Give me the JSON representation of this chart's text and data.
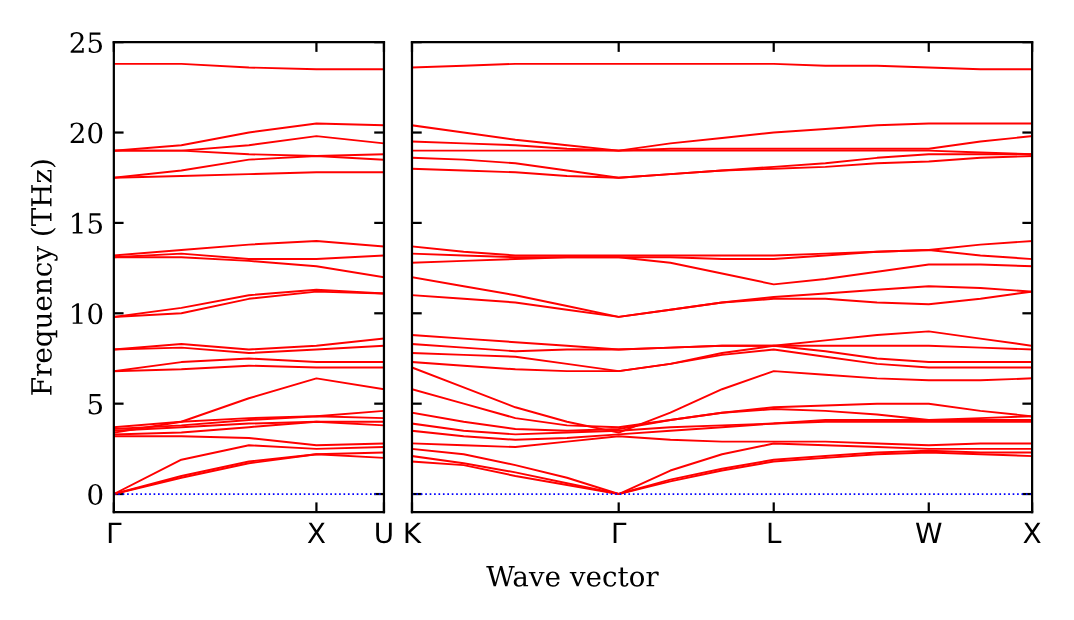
{
  "chart_data": [
    {
      "type": "line",
      "ylabel": "Frequency (THz)",
      "categories": [
        "Γ",
        null,
        null,
        "X",
        "U"
      ],
      "ylim": [
        -1,
        25
      ],
      "yticks": [
        0,
        5,
        10,
        15,
        20,
        25
      ],
      "grid": false,
      "legend": false,
      "marker": "none",
      "line_style": "solid",
      "ref_lines": [
        {
          "axis": "y",
          "value": 0,
          "color": "#0000ff",
          "line_style": "dotted"
        }
      ],
      "series": [
        {
          "color": "#ff0000",
          "values": [
            0,
            0.9,
            1.7,
            2.2,
            2.0
          ]
        },
        {
          "color": "#ff0000",
          "values": [
            0,
            1.0,
            1.8,
            2.2,
            2.3
          ]
        },
        {
          "color": "#ff0000",
          "values": [
            0,
            1.9,
            2.7,
            2.5,
            2.6
          ]
        },
        {
          "color": "#ff0000",
          "values": [
            3.2,
            3.2,
            3.1,
            2.7,
            2.8
          ]
        },
        {
          "color": "#ff0000",
          "values": [
            3.3,
            3.4,
            3.7,
            4.0,
            3.8
          ]
        },
        {
          "color": "#ff0000",
          "values": [
            3.5,
            3.7,
            3.9,
            4.0,
            4.0
          ]
        },
        {
          "color": "#ff0000",
          "values": [
            3.6,
            3.8,
            4.1,
            4.3,
            4.2
          ]
        },
        {
          "color": "#ff0000",
          "values": [
            3.7,
            4.0,
            4.2,
            4.3,
            4.6
          ]
        },
        {
          "color": "#ff0000",
          "values": [
            3.4,
            4.0,
            5.3,
            6.4,
            5.8
          ]
        },
        {
          "color": "#ff0000",
          "values": [
            6.8,
            6.9,
            7.1,
            7.0,
            7.0
          ]
        },
        {
          "color": "#ff0000",
          "values": [
            6.8,
            7.3,
            7.5,
            7.3,
            7.3
          ]
        },
        {
          "color": "#ff0000",
          "values": [
            8.0,
            8.1,
            7.8,
            8.0,
            8.2
          ]
        },
        {
          "color": "#ff0000",
          "values": [
            8.0,
            8.3,
            8.0,
            8.2,
            8.6
          ]
        },
        {
          "color": "#ff0000",
          "values": [
            9.8,
            10.0,
            10.8,
            11.2,
            11.1
          ]
        },
        {
          "color": "#ff0000",
          "values": [
            9.8,
            10.3,
            11.0,
            11.3,
            11.1
          ]
        },
        {
          "color": "#ff0000",
          "values": [
            13.1,
            13.1,
            12.9,
            12.6,
            12.0
          ]
        },
        {
          "color": "#ff0000",
          "values": [
            13.1,
            13.3,
            13.0,
            13.0,
            13.2
          ]
        },
        {
          "color": "#ff0000",
          "values": [
            13.2,
            13.5,
            13.8,
            14.0,
            13.7
          ]
        },
        {
          "color": "#ff0000",
          "values": [
            17.5,
            17.6,
            17.7,
            17.8,
            17.8
          ]
        },
        {
          "color": "#ff0000",
          "values": [
            17.5,
            17.9,
            18.5,
            18.7,
            18.5
          ]
        },
        {
          "color": "#ff0000",
          "values": [
            19.0,
            19.0,
            18.8,
            18.7,
            18.8
          ]
        },
        {
          "color": "#ff0000",
          "values": [
            19.0,
            19.0,
            19.3,
            19.8,
            19.4
          ]
        },
        {
          "color": "#ff0000",
          "values": [
            19.0,
            19.3,
            20.0,
            20.5,
            20.4
          ]
        },
        {
          "color": "#ff0000",
          "values": [
            23.8,
            23.8,
            23.6,
            23.5,
            23.5
          ]
        }
      ]
    },
    {
      "type": "line",
      "xlabel": "Wave vector",
      "categories": [
        "K",
        null,
        null,
        null,
        "Γ",
        null,
        null,
        "L",
        null,
        null,
        "W",
        null,
        "X"
      ],
      "ylim": [
        -1,
        25
      ],
      "yticks": [
        0,
        5,
        10,
        15,
        20,
        25
      ],
      "tick_labels": "x",
      "grid": false,
      "legend": false,
      "marker": "none",
      "line_style": "solid",
      "ref_lines": [
        {
          "axis": "y",
          "value": 0,
          "color": "#0000ff",
          "line_style": "dotted"
        }
      ],
      "series": [
        {
          "color": "#ff0000",
          "values": [
            1.8,
            1.6,
            1.0,
            0.5,
            0,
            0.7,
            1.3,
            1.8,
            2.0,
            2.2,
            2.3,
            2.2,
            2.1
          ]
        },
        {
          "color": "#ff0000",
          "values": [
            2.1,
            1.7,
            1.2,
            0.6,
            0,
            0.8,
            1.4,
            1.9,
            2.1,
            2.3,
            2.4,
            2.3,
            2.3
          ]
        },
        {
          "color": "#ff0000",
          "values": [
            2.5,
            2.2,
            1.6,
            0.9,
            0,
            1.3,
            2.2,
            2.8,
            2.7,
            2.6,
            2.5,
            2.5,
            2.5
          ]
        },
        {
          "color": "#ff0000",
          "values": [
            2.8,
            2.7,
            2.6,
            2.9,
            3.2,
            3.0,
            2.9,
            2.9,
            2.9,
            2.8,
            2.7,
            2.8,
            2.8
          ]
        },
        {
          "color": "#ff0000",
          "values": [
            3.5,
            3.2,
            3.0,
            3.1,
            3.3,
            3.5,
            3.7,
            3.9,
            4.0,
            4.0,
            4.0,
            4.0,
            4.0
          ]
        },
        {
          "color": "#ff0000",
          "values": [
            3.9,
            3.5,
            3.3,
            3.4,
            3.5,
            3.7,
            3.8,
            3.9,
            4.1,
            4.1,
            4.1,
            4.1,
            4.1
          ]
        },
        {
          "color": "#ff0000",
          "values": [
            4.5,
            4.0,
            3.6,
            3.5,
            3.6,
            4.1,
            4.5,
            4.7,
            4.6,
            4.4,
            4.1,
            4.2,
            4.3
          ]
        },
        {
          "color": "#ff0000",
          "values": [
            5.8,
            5.0,
            4.2,
            3.8,
            3.7,
            4.1,
            4.5,
            4.8,
            4.9,
            5.0,
            5.0,
            4.6,
            4.3
          ]
        },
        {
          "color": "#ff0000",
          "values": [
            7.0,
            5.9,
            4.8,
            4.0,
            3.4,
            4.5,
            5.8,
            6.8,
            6.6,
            6.4,
            6.3,
            6.3,
            6.4
          ]
        },
        {
          "color": "#ff0000",
          "values": [
            7.3,
            7.1,
            6.9,
            6.8,
            6.8,
            7.2,
            7.7,
            8.0,
            7.6,
            7.2,
            7.0,
            7.0,
            7.0
          ]
        },
        {
          "color": "#ff0000",
          "values": [
            7.8,
            7.7,
            7.6,
            7.2,
            6.8,
            7.2,
            7.8,
            8.2,
            7.9,
            7.5,
            7.3,
            7.3,
            7.3
          ]
        },
        {
          "color": "#ff0000",
          "values": [
            8.3,
            8.1,
            7.9,
            8.0,
            8.0,
            8.1,
            8.2,
            8.2,
            8.2,
            8.2,
            8.2,
            8.1,
            8.0
          ]
        },
        {
          "color": "#ff0000",
          "values": [
            8.8,
            8.6,
            8.4,
            8.2,
            8.0,
            8.1,
            8.2,
            8.2,
            8.5,
            8.8,
            9.0,
            8.6,
            8.2
          ]
        },
        {
          "color": "#ff0000",
          "values": [
            11.0,
            10.8,
            10.6,
            10.2,
            9.8,
            10.2,
            10.6,
            10.8,
            10.8,
            10.6,
            10.5,
            10.8,
            11.2
          ]
        },
        {
          "color": "#ff0000",
          "values": [
            12.0,
            11.5,
            11.0,
            10.4,
            9.8,
            10.2,
            10.6,
            10.9,
            11.1,
            11.3,
            11.5,
            11.4,
            11.2
          ]
        },
        {
          "color": "#ff0000",
          "values": [
            12.8,
            12.9,
            13.0,
            13.1,
            13.1,
            12.8,
            12.2,
            11.6,
            11.9,
            12.3,
            12.7,
            12.7,
            12.6
          ]
        },
        {
          "color": "#ff0000",
          "values": [
            13.3,
            13.2,
            13.1,
            13.1,
            13.1,
            13.1,
            13.0,
            13.0,
            13.2,
            13.4,
            13.5,
            13.2,
            13.0
          ]
        },
        {
          "color": "#ff0000",
          "values": [
            13.7,
            13.4,
            13.2,
            13.2,
            13.2,
            13.2,
            13.2,
            13.2,
            13.3,
            13.4,
            13.5,
            13.8,
            14.0
          ]
        },
        {
          "color": "#ff0000",
          "values": [
            18.0,
            17.9,
            17.8,
            17.6,
            17.5,
            17.7,
            17.9,
            18.0,
            18.1,
            18.3,
            18.4,
            18.6,
            18.7
          ]
        },
        {
          "color": "#ff0000",
          "values": [
            18.6,
            18.5,
            18.3,
            17.9,
            17.5,
            17.7,
            17.9,
            18.1,
            18.3,
            18.6,
            18.8,
            18.8,
            18.8
          ]
        },
        {
          "color": "#ff0000",
          "values": [
            19.0,
            19.0,
            19.0,
            19.0,
            19.0,
            19.0,
            19.0,
            19.0,
            19.0,
            19.0,
            19.0,
            18.9,
            18.8
          ]
        },
        {
          "color": "#ff0000",
          "values": [
            19.5,
            19.4,
            19.3,
            19.1,
            19.0,
            19.1,
            19.1,
            19.1,
            19.1,
            19.1,
            19.1,
            19.5,
            19.8
          ]
        },
        {
          "color": "#ff0000",
          "values": [
            20.4,
            20.0,
            19.6,
            19.3,
            19.0,
            19.4,
            19.7,
            20.0,
            20.2,
            20.4,
            20.5,
            20.5,
            20.5
          ]
        },
        {
          "color": "#ff0000",
          "values": [
            23.6,
            23.7,
            23.8,
            23.8,
            23.8,
            23.8,
            23.8,
            23.8,
            23.7,
            23.7,
            23.6,
            23.5,
            23.5
          ]
        }
      ]
    }
  ]
}
